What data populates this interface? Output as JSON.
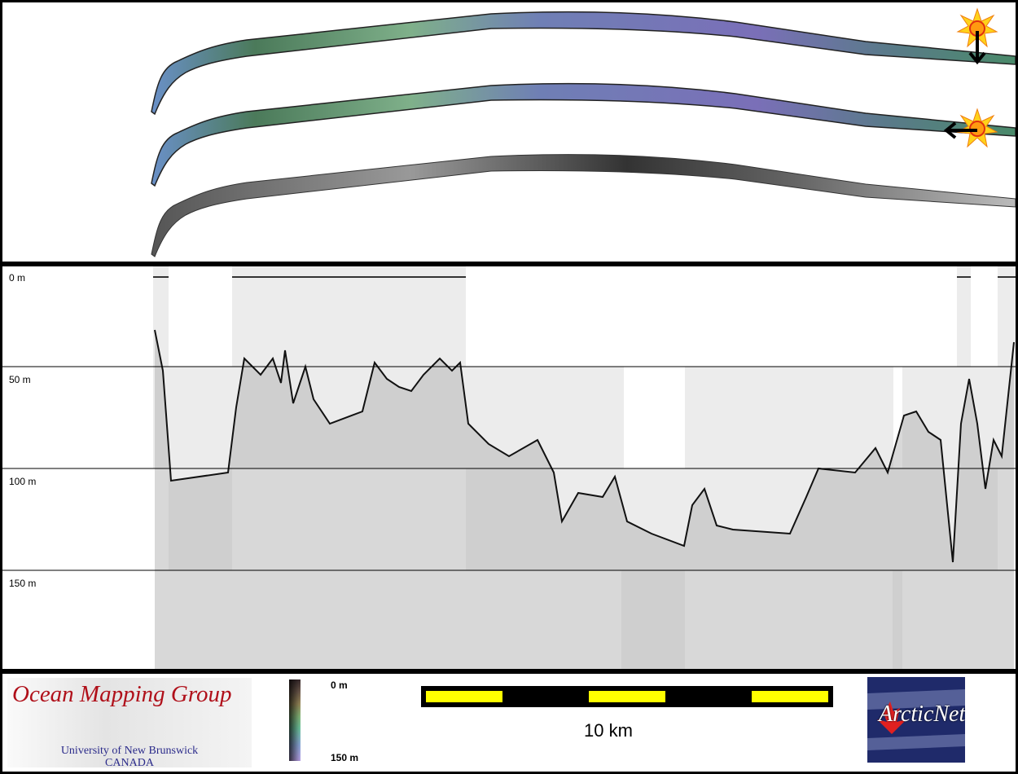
{
  "swaths": {
    "top_icon": "sun-icon",
    "top_arrow": "arrow-down-icon",
    "middle_icon": "sun-icon",
    "middle_arrow": "arrow-left-icon"
  },
  "profile": {
    "depth_labels": [
      "0 m",
      "50 m",
      "100 m",
      "150 m"
    ]
  },
  "footer": {
    "omg_logo": {
      "title": "Ocean Mapping Group",
      "subtitle_line1": "University of New Brunswick",
      "subtitle_line2": "CANADA"
    },
    "colorbar": {
      "top_label": "0 m",
      "bottom_label": "150 m"
    },
    "scalebar": {
      "label": "10 km",
      "colors": [
        "#000000",
        "#ffff00"
      ]
    },
    "arcticnet_logo": {
      "text": "ArcticNet"
    }
  }
}
